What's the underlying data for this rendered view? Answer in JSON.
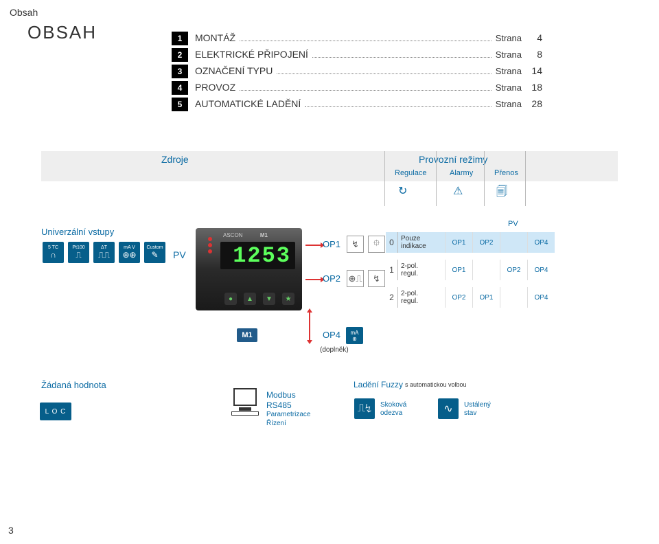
{
  "header": {
    "small_title": "Obsah",
    "big_title": "OBSAH"
  },
  "toc": [
    {
      "num": "1",
      "label": "MONTÁŽ",
      "word": "Strana",
      "page": "4"
    },
    {
      "num": "2",
      "label": "ELEKTRICKÉ PŘIPOJENÍ",
      "word": "Strana",
      "page": "8"
    },
    {
      "num": "3",
      "label": "OZNAČENÍ TYPU",
      "word": "Strana",
      "page": "14"
    },
    {
      "num": "4",
      "label": "PROVOZ",
      "word": "Strana",
      "page": "18"
    },
    {
      "num": "5",
      "label": "AUTOMATICKÉ LADĚNÍ",
      "word": "Strana",
      "page": "28"
    }
  ],
  "header_band": {
    "zdroje": "Zdroje",
    "provozni": "Provozní režimy",
    "sub": [
      "Regulace",
      "Alarmy",
      "Přenos"
    ],
    "icons": [
      "↻",
      "⚠",
      "🗐"
    ]
  },
  "inputs": {
    "title": "Univerzální vstupy",
    "types": [
      {
        "top": "5 TC",
        "sym": "∩"
      },
      {
        "top": "Pt100",
        "sym": "⎍"
      },
      {
        "top": "ΔT",
        "sym": "⎍⎍"
      },
      {
        "top": "mA V",
        "sym": "⊕⊕"
      },
      {
        "top": "Custom",
        "sym": "✎"
      }
    ],
    "pv_label": "PV"
  },
  "controller": {
    "brand": "ASCON",
    "model": "M1",
    "digits": "1253",
    "model_badge": "M1"
  },
  "outputs": {
    "op1": "OP1",
    "op2": "OP2",
    "op4": "OP4",
    "ma_top": "mA",
    "ma_sym": "⊕",
    "doplnek": "(doplněk)",
    "op_icons1": [
      "↯",
      "⯐"
    ],
    "op_icons2": [
      "⊕⎍",
      "↯"
    ]
  },
  "modes": {
    "pv_top": "PV",
    "rows": [
      {
        "idx": "0",
        "l1": "Pouze",
        "l2": "indikace",
        "c": [
          "OP1",
          "OP2",
          "",
          "OP4"
        ]
      },
      {
        "idx": "1",
        "l1": "2-pol.",
        "l2": "regul.",
        "c": [
          "OP1",
          "",
          "OP2",
          "OP4"
        ]
      },
      {
        "idx": "2",
        "l1": "2-pol.",
        "l2": "regul.",
        "c": [
          "OP2",
          "OP1",
          "",
          "OP4"
        ]
      }
    ]
  },
  "setpoint": {
    "label": "Žádaná hodnota",
    "loc": "L O C"
  },
  "modbus": {
    "l1": "Modbus",
    "l2": "RS485",
    "l3": "Parametrizace",
    "l4": "Řízení"
  },
  "fuzzy": {
    "title": "Ladění Fuzzy",
    "sub": "s automatickou volbou",
    "step_l1": "Skoková",
    "step_l2": "odezva",
    "steady_l1": "Ustálený",
    "steady_l2": "stav",
    "icon1": "⎍↯",
    "icon2": "∿"
  },
  "page_number": "3",
  "colors": {
    "accent": "#065e8a",
    "red": "#d33",
    "band": "#eee",
    "hl": "#cfe7f7"
  }
}
